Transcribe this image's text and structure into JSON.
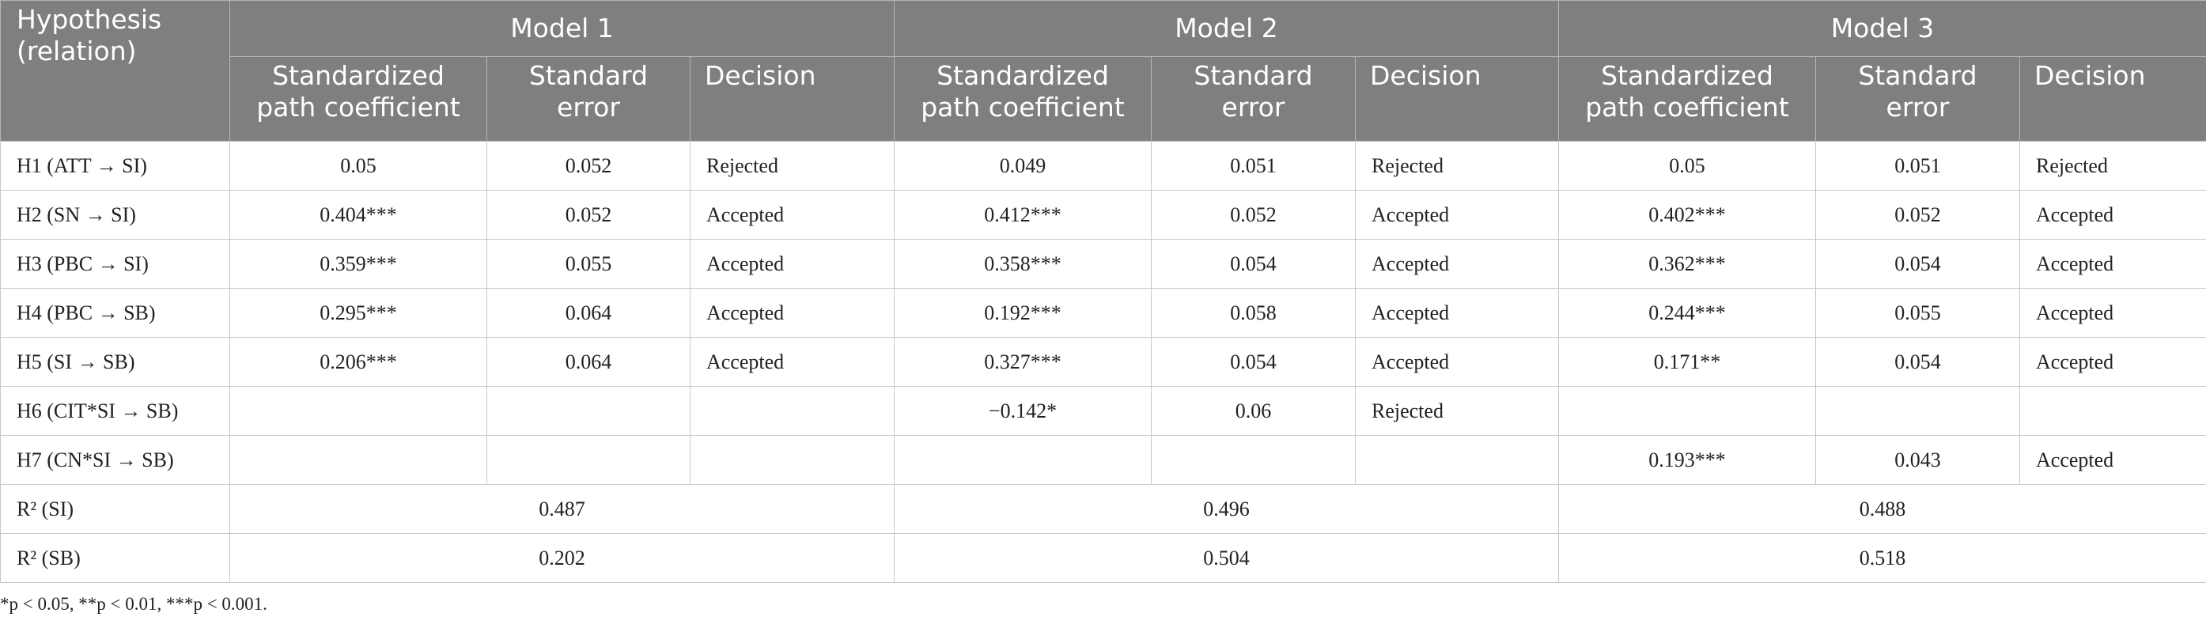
{
  "table": {
    "header": {
      "hypothesis": "Hypothesis (relation)",
      "models": [
        "Model 1",
        "Model 2",
        "Model 3"
      ],
      "columns": [
        "Standardized path coefficient",
        "Standard error",
        "Decision"
      ]
    },
    "rows": [
      [
        "H1 (ATT → SI)",
        "0.05",
        "0.052",
        "Rejected",
        "0.049",
        "0.051",
        "Rejected",
        "0.05",
        "0.051",
        "Rejected"
      ],
      [
        "H2 (SN → SI)",
        "0.404***",
        "0.052",
        "Accepted",
        "0.412***",
        "0.052",
        "Accepted",
        "0.402***",
        "0.052",
        "Accepted"
      ],
      [
        "H3 (PBC → SI)",
        "0.359***",
        "0.055",
        "Accepted",
        "0.358***",
        "0.054",
        "Accepted",
        "0.362***",
        "0.054",
        "Accepted"
      ],
      [
        "H4 (PBC → SB)",
        "0.295***",
        "0.064",
        "Accepted",
        "0.192***",
        "0.058",
        "Accepted",
        "0.244***",
        "0.055",
        "Accepted"
      ],
      [
        "H5 (SI → SB)",
        "0.206***",
        "0.064",
        "Accepted",
        "0.327***",
        "0.054",
        "Accepted",
        "0.171**",
        "0.054",
        "Accepted"
      ],
      [
        "H6 (CIT*SI → SB)",
        null,
        null,
        null,
        "−0.142*",
        "0.06",
        "Rejected",
        null,
        null,
        null
      ],
      [
        "H7 (CN*SI → SB)",
        null,
        null,
        null,
        null,
        null,
        null,
        "0.193***",
        "0.043",
        "Accepted"
      ]
    ],
    "r2_rows": [
      [
        "R² (SI)",
        "0.487",
        "0.496",
        "0.488"
      ],
      [
        "R² (SB)",
        "0.202",
        "0.504",
        "0.518"
      ]
    ]
  },
  "footnote": "*p < 0.05, **p < 0.01, ***p < 0.001."
}
